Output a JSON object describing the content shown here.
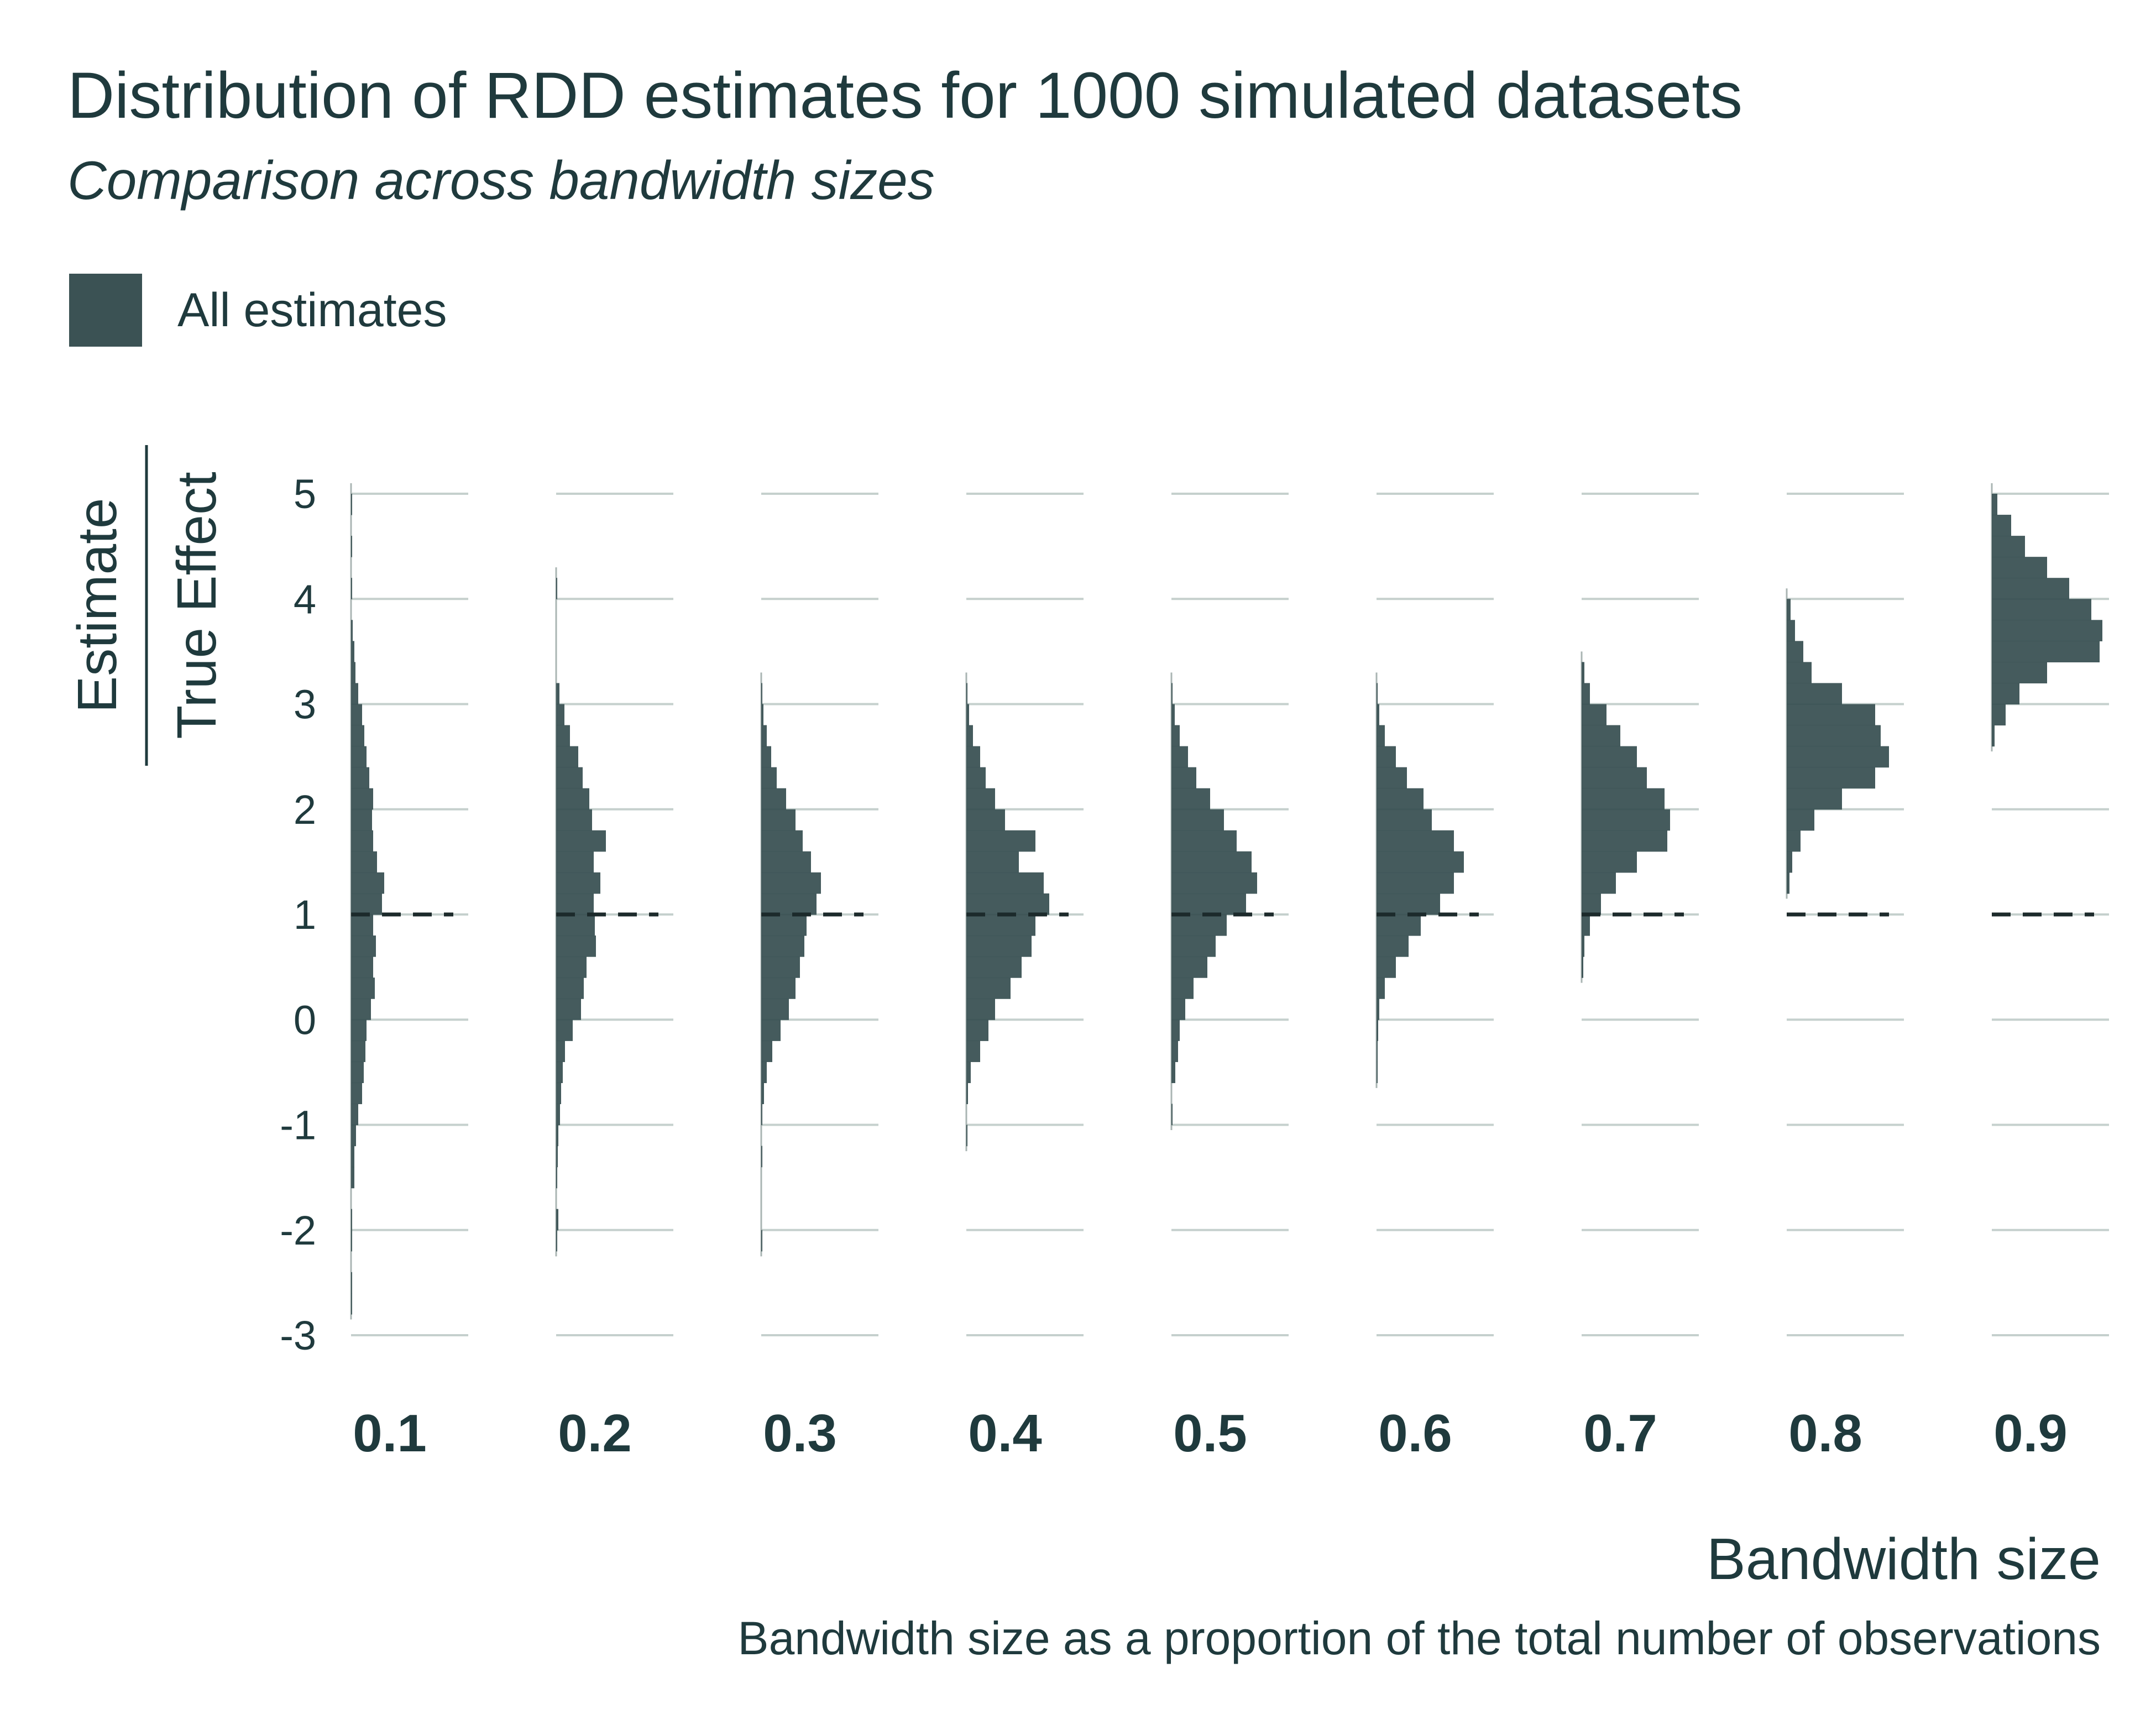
{
  "chart_data": {
    "type": "histogram",
    "title": "Distribution of RDD estimates for 1000 simulated datasets",
    "subtitle": "Comparison across bandwidth sizes",
    "legend": [
      "All estimates"
    ],
    "ylabel_numerator": "Estimate",
    "ylabel_denominator": "True Effect",
    "xlabel": "Bandwidth size",
    "xlabel_note": "Bandwidth size as a proportion of the total number of observations",
    "categories": [
      "0.1",
      "0.2",
      "0.3",
      "0.4",
      "0.5",
      "0.6",
      "0.7",
      "0.8",
      "0.9"
    ],
    "yticks": [
      "5",
      "4",
      "3",
      "2",
      "1",
      "0",
      "-1",
      "-2",
      "-3"
    ],
    "ylim": [
      -3,
      5
    ],
    "reference_line": 1,
    "bin_width": 0.2,
    "series_color": "#3b5254",
    "grid_color": "#c5d0cd",
    "series": [
      {
        "category": "0.1",
        "bins": [
          [
            -2.8,
            1
          ],
          [
            -2.6,
            1
          ],
          [
            -2.2,
            2
          ],
          [
            -2.0,
            1
          ],
          [
            -1.6,
            6
          ],
          [
            -1.4,
            6
          ],
          [
            -1.2,
            9
          ],
          [
            -1.0,
            13
          ],
          [
            -0.8,
            20
          ],
          [
            -0.6,
            23
          ],
          [
            -0.4,
            26
          ],
          [
            -0.2,
            28
          ],
          [
            0.0,
            36
          ],
          [
            0.2,
            43
          ],
          [
            0.4,
            40
          ],
          [
            0.6,
            45
          ],
          [
            0.8,
            40
          ],
          [
            1.0,
            56
          ],
          [
            1.2,
            60
          ],
          [
            1.4,
            47
          ],
          [
            1.6,
            40
          ],
          [
            1.8,
            38
          ],
          [
            2.0,
            40
          ],
          [
            2.2,
            33
          ],
          [
            2.4,
            28
          ],
          [
            2.6,
            24
          ],
          [
            2.8,
            20
          ],
          [
            3.0,
            13
          ],
          [
            3.2,
            8
          ],
          [
            3.4,
            6
          ],
          [
            3.6,
            3
          ],
          [
            4.0,
            2
          ],
          [
            4.4,
            1
          ],
          [
            4.8,
            1
          ]
        ]
      },
      {
        "category": "0.2",
        "bins": [
          [
            -2.2,
            1
          ],
          [
            -2.0,
            4
          ],
          [
            -1.6,
            2
          ],
          [
            -1.4,
            3
          ],
          [
            -1.2,
            4
          ],
          [
            -1.0,
            7
          ],
          [
            -0.8,
            9
          ],
          [
            -0.6,
            12
          ],
          [
            -0.4,
            16
          ],
          [
            -0.2,
            30
          ],
          [
            0.0,
            45
          ],
          [
            0.2,
            50
          ],
          [
            0.4,
            55
          ],
          [
            0.6,
            72
          ],
          [
            0.8,
            70
          ],
          [
            1.0,
            68
          ],
          [
            1.2,
            80
          ],
          [
            1.4,
            68
          ],
          [
            1.6,
            90
          ],
          [
            1.8,
            65
          ],
          [
            2.0,
            60
          ],
          [
            2.2,
            48
          ],
          [
            2.4,
            40
          ],
          [
            2.6,
            25
          ],
          [
            2.8,
            15
          ],
          [
            3.0,
            6
          ],
          [
            4.0,
            2
          ]
        ]
      },
      {
        "category": "0.3",
        "bins": [
          [
            -2.2,
            1
          ],
          [
            -1.4,
            1
          ],
          [
            -1.0,
            2
          ],
          [
            -0.8,
            5
          ],
          [
            -0.6,
            10
          ],
          [
            -0.4,
            20
          ],
          [
            -0.2,
            35
          ],
          [
            0.0,
            50
          ],
          [
            0.2,
            62
          ],
          [
            0.4,
            70
          ],
          [
            0.6,
            78
          ],
          [
            0.8,
            82
          ],
          [
            1.0,
            100
          ],
          [
            1.2,
            108
          ],
          [
            1.4,
            90
          ],
          [
            1.6,
            75
          ],
          [
            1.8,
            62
          ],
          [
            2.0,
            45
          ],
          [
            2.2,
            28
          ],
          [
            2.4,
            18
          ],
          [
            2.6,
            10
          ],
          [
            2.8,
            4
          ],
          [
            3.0,
            1
          ]
        ]
      },
      {
        "category": "0.4",
        "bins": [
          [
            -1.2,
            1
          ],
          [
            -0.8,
            3
          ],
          [
            -0.6,
            8
          ],
          [
            -0.4,
            25
          ],
          [
            -0.2,
            40
          ],
          [
            0.0,
            52
          ],
          [
            0.2,
            80
          ],
          [
            0.4,
            100
          ],
          [
            0.6,
            118
          ],
          [
            0.8,
            125
          ],
          [
            1.0,
            150
          ],
          [
            1.2,
            140
          ],
          [
            1.4,
            95
          ],
          [
            1.6,
            125
          ],
          [
            1.8,
            70
          ],
          [
            2.0,
            52
          ],
          [
            2.2,
            35
          ],
          [
            2.4,
            25
          ],
          [
            2.6,
            12
          ],
          [
            2.8,
            5
          ],
          [
            3.0,
            1
          ]
        ]
      },
      {
        "category": "0.5",
        "bins": [
          [
            -1.0,
            2
          ],
          [
            -0.6,
            7
          ],
          [
            -0.4,
            12
          ],
          [
            -0.2,
            15
          ],
          [
            0.0,
            25
          ],
          [
            0.2,
            40
          ],
          [
            0.4,
            65
          ],
          [
            0.6,
            80
          ],
          [
            0.8,
            100
          ],
          [
            1.0,
            135
          ],
          [
            1.2,
            155
          ],
          [
            1.4,
            145
          ],
          [
            1.6,
            118
          ],
          [
            1.8,
            95
          ],
          [
            2.0,
            70
          ],
          [
            2.2,
            45
          ],
          [
            2.4,
            30
          ],
          [
            2.6,
            15
          ],
          [
            2.8,
            6
          ],
          [
            3.0,
            2
          ]
        ]
      },
      {
        "category": "0.6",
        "bins": [
          [
            -0.6,
            1
          ],
          [
            -0.4,
            1
          ],
          [
            -0.2,
            3
          ],
          [
            0.0,
            5
          ],
          [
            0.2,
            15
          ],
          [
            0.4,
            35
          ],
          [
            0.6,
            58
          ],
          [
            0.8,
            80
          ],
          [
            1.0,
            115
          ],
          [
            1.2,
            140
          ],
          [
            1.4,
            158
          ],
          [
            1.6,
            140
          ],
          [
            1.8,
            100
          ],
          [
            2.0,
            85
          ],
          [
            2.2,
            55
          ],
          [
            2.4,
            35
          ],
          [
            2.6,
            15
          ],
          [
            2.8,
            5
          ],
          [
            3.0,
            2
          ]
        ]
      },
      {
        "category": "0.7",
        "bins": [
          [
            0.4,
            3
          ],
          [
            0.6,
            5
          ],
          [
            0.8,
            15
          ],
          [
            1.0,
            35
          ],
          [
            1.2,
            62
          ],
          [
            1.4,
            100
          ],
          [
            1.6,
            155
          ],
          [
            1.8,
            160
          ],
          [
            2.0,
            150
          ],
          [
            2.2,
            118
          ],
          [
            2.4,
            100
          ],
          [
            2.6,
            70
          ],
          [
            2.8,
            45
          ],
          [
            3.0,
            15
          ],
          [
            3.2,
            5
          ]
        ]
      },
      {
        "category": "0.8",
        "bins": [
          [
            1.2,
            5
          ],
          [
            1.4,
            10
          ],
          [
            1.6,
            25
          ],
          [
            1.8,
            50
          ],
          [
            2.0,
            100
          ],
          [
            2.2,
            160
          ],
          [
            2.4,
            185
          ],
          [
            2.6,
            170
          ],
          [
            2.8,
            160
          ],
          [
            3.0,
            100
          ],
          [
            3.2,
            45
          ],
          [
            3.4,
            30
          ],
          [
            3.6,
            15
          ],
          [
            3.8,
            7
          ]
        ]
      },
      {
        "category": "0.9",
        "bins": [
          [
            2.6,
            5
          ],
          [
            2.8,
            25
          ],
          [
            3.0,
            50
          ],
          [
            3.2,
            100
          ],
          [
            3.4,
            195
          ],
          [
            3.6,
            200
          ],
          [
            3.8,
            180
          ],
          [
            4.0,
            140
          ],
          [
            4.2,
            100
          ],
          [
            4.4,
            60
          ],
          [
            4.6,
            35
          ],
          [
            4.8,
            10
          ]
        ]
      }
    ]
  }
}
